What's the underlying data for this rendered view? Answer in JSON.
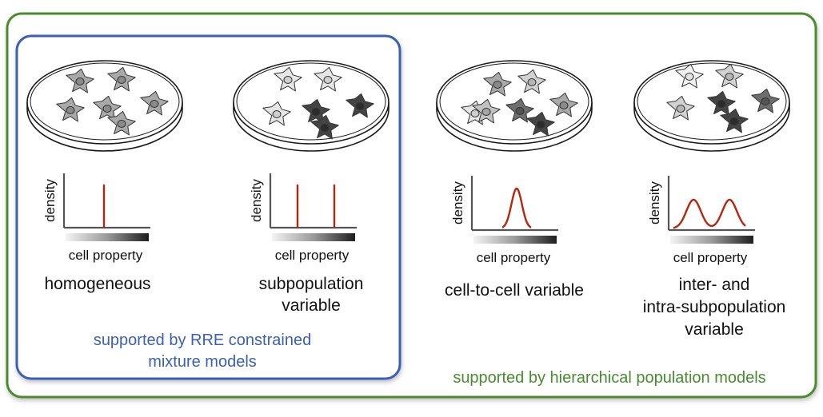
{
  "outer_box": {
    "label": "supported by hierarchical population models",
    "color": "#4a8b2f"
  },
  "inner_box": {
    "label_line1": "supported by RRE constrained",
    "label_line2": "mixture models",
    "color": "#3b5fb5"
  },
  "axis": {
    "ylabel": "density",
    "xlabel": "cell property"
  },
  "curve_color": "#b5260d",
  "panels": [
    {
      "id": "homogeneous",
      "caption": [
        "homogeneous"
      ],
      "density": "single-spike"
    },
    {
      "id": "subpopulation",
      "caption": [
        "subpopulation",
        "variable"
      ],
      "density": "two-spikes"
    },
    {
      "id": "cell-to-cell",
      "caption": [
        "cell-to-cell variable"
      ],
      "density": "single-gaussian"
    },
    {
      "id": "inter-intra",
      "caption": [
        "inter- and",
        "intra-subpopulation",
        "variable"
      ],
      "density": "two-gaussians"
    }
  ],
  "cell_shades": {
    "homogeneous": [
      "medium",
      "medium",
      "medium",
      "medium",
      "medium",
      "medium"
    ],
    "subpopulation": [
      "light",
      "light",
      "light",
      "dark",
      "dark",
      "dark"
    ],
    "cell-to-cell": [
      "light",
      "medium",
      "darkish",
      "lightish",
      "medium",
      "dark",
      "mediumlight"
    ],
    "inter-intra": [
      "verylight",
      "lightish",
      "lightish",
      "dark",
      "darkish",
      "dark"
    ]
  }
}
